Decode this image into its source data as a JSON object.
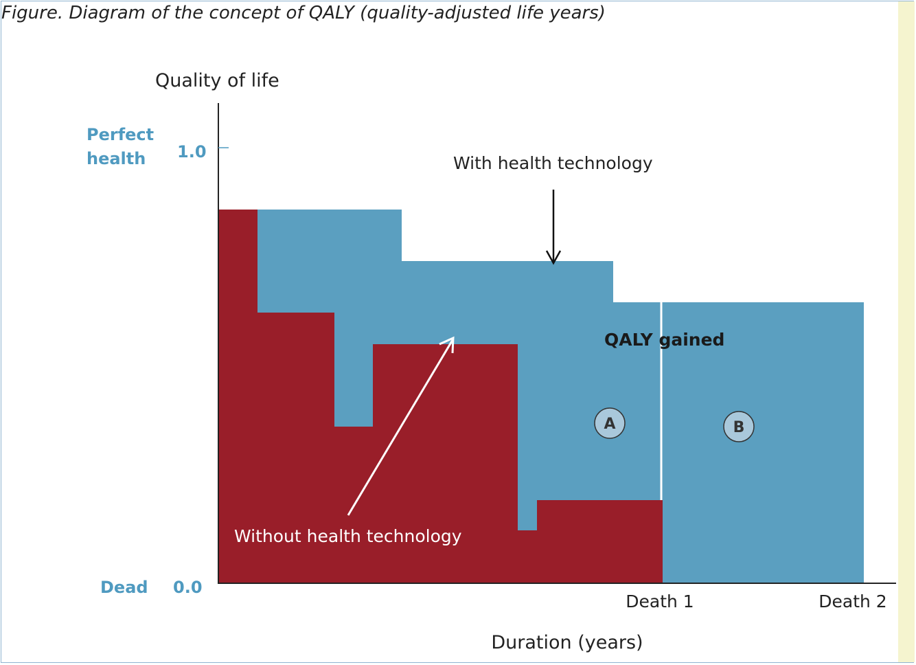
{
  "figure_title": "Figure. Diagram of the concept of QALY (quality-adjusted life years)",
  "y_axis_label": "Quality of life",
  "x_axis_label": "Duration (years)",
  "y_top_state": [
    "Perfect",
    "health"
  ],
  "y_top_value": "1.0",
  "y_bottom_state": "Dead",
  "y_bottom_value": "0.0",
  "x_ticks": {
    "death1": "Death 1",
    "death2": "Death 2"
  },
  "labels": {
    "with": "With health technology",
    "without": "Without health technology",
    "qaly_gained": "QALY gained",
    "region_a": "A",
    "region_b": "B"
  },
  "colors": {
    "with_technology": "#5b9fc0",
    "without_technology": "#991e29",
    "axis_label_accent": "#4f9ac0"
  }
}
